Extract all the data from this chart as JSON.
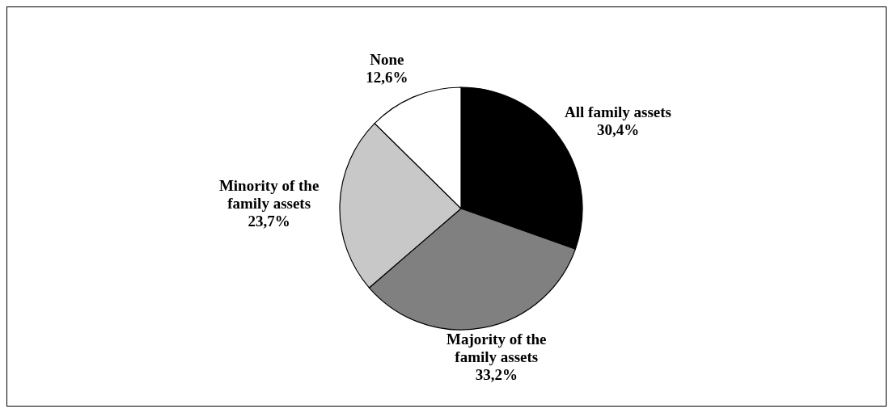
{
  "chart_data": {
    "type": "pie",
    "categories": [
      "All family assets",
      "Majority of the family assets",
      "Minority of the family assets",
      "None"
    ],
    "values": [
      30.4,
      33.2,
      23.7,
      12.6
    ],
    "colors": [
      "#000000",
      "#808080",
      "#c8c8c8",
      "#ffffff"
    ],
    "value_labels": [
      "30,4%",
      "33,2%",
      "23,7%",
      "12,6%"
    ]
  }
}
